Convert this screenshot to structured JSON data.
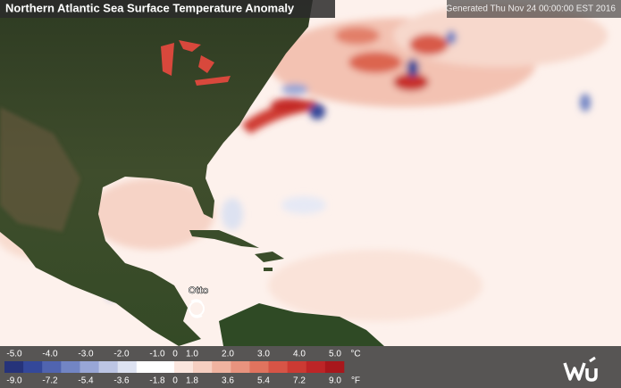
{
  "header": {
    "title": "Northern Atlantic Sea Surface Temperature Anomaly",
    "generated": "Generated Thu Nov 24 00:00:00 EST 2016"
  },
  "map": {
    "storm_label": "Otto"
  },
  "legend": {
    "celsius_labels": [
      "-5.0",
      "-4.0",
      "-3.0",
      "-2.0",
      "-1.0",
      "0",
      "1.0",
      "2.0",
      "3.0",
      "4.0",
      "5.0"
    ],
    "celsius_unit": "°C",
    "fahrenheit_labels": [
      "-9.0",
      "-7.2",
      "-5.4",
      "-3.6",
      "-1.8",
      "0",
      "1.8",
      "3.6",
      "5.4",
      "7.2",
      "9.0"
    ],
    "fahrenheit_unit": "°F",
    "colors": [
      "#26337a",
      "#34489a",
      "#5064b0",
      "#7285c4",
      "#98a6d6",
      "#bcc5e4",
      "#dde2f1",
      "#ffffff",
      "#ffffff",
      "#fbe6de",
      "#f6cfc1",
      "#f0b3a0",
      "#e9937e",
      "#e1735e",
      "#d75446",
      "#cc3a33",
      "#bd2527",
      "#a8171c"
    ]
  }
}
